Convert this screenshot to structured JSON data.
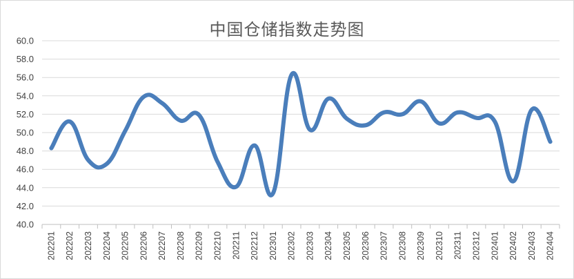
{
  "chart_data": {
    "type": "line",
    "title": "中国仓储指数走势图",
    "xlabel": "",
    "ylabel": "",
    "ylim": [
      40.0,
      60.0
    ],
    "y_ticks": [
      "40.0",
      "42.0",
      "44.0",
      "46.0",
      "48.0",
      "50.0",
      "52.0",
      "54.0",
      "56.0",
      "58.0",
      "60.0"
    ],
    "categories": [
      "202201",
      "202202",
      "202203",
      "202204",
      "202205",
      "202206",
      "202207",
      "202208",
      "202209",
      "202210",
      "202211",
      "202212",
      "202301",
      "202302",
      "202303",
      "202304",
      "202305",
      "202306",
      "202307",
      "202308",
      "202309",
      "202310",
      "202311",
      "202312",
      "202401",
      "202402",
      "202403",
      "202404"
    ],
    "series": [
      {
        "values": [
          48.3,
          51.2,
          47.0,
          46.6,
          50.2,
          53.9,
          53.2,
          51.3,
          51.9,
          46.8,
          44.1,
          48.6,
          43.4,
          56.3,
          50.3,
          53.7,
          51.5,
          50.8,
          52.2,
          52.0,
          53.4,
          51.0,
          52.2,
          51.6,
          51.2,
          44.7,
          52.5,
          49.0
        ]
      }
    ],
    "grid": true,
    "legend": "none",
    "line_color": "#4a7ebb"
  }
}
